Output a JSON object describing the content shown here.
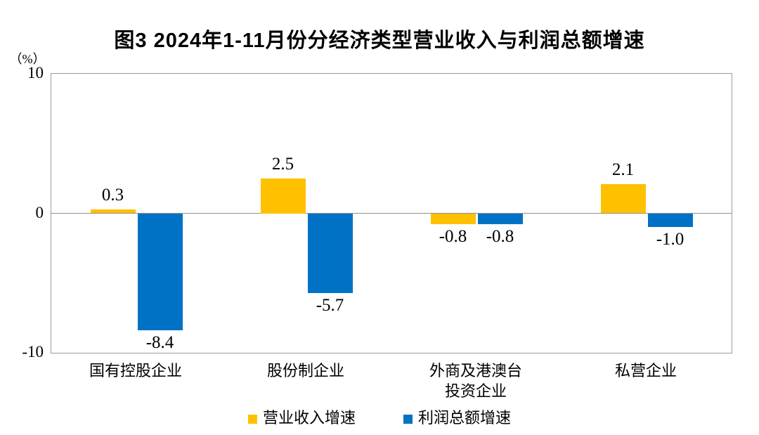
{
  "chart_data": {
    "type": "bar",
    "title": "图3  2024年1-11月份分经济类型营业收入与利润总额增速",
    "unit_label": "（%）",
    "categories": [
      "国有控股企业",
      "股份制企业",
      "外商及港澳台\n投资企业",
      "私营企业"
    ],
    "series": [
      {
        "name": "营业收入增速",
        "key": "revenue",
        "color": "#FFC000",
        "values": [
          0.3,
          2.5,
          -0.8,
          2.1
        ]
      },
      {
        "name": "利润总额增速",
        "key": "profit",
        "color": "#0072C6",
        "values": [
          -8.4,
          -5.7,
          -0.8,
          -1.0
        ]
      }
    ],
    "value_labels": [
      [
        "0.3",
        "2.5",
        "-0.8",
        "2.1"
      ],
      [
        "-8.4",
        "-5.7",
        "-0.8",
        "-1.0"
      ]
    ],
    "ylim": [
      -10,
      10
    ],
    "yticks": [
      10,
      0,
      -10
    ],
    "grid": "zero-line-only",
    "legend_position": "bottom"
  },
  "colors": {
    "revenue": "#FFC000",
    "profit": "#0072C6",
    "axis_border": "#9b9b9b",
    "zero_line": "#8f8f8f",
    "text": "#000000"
  }
}
